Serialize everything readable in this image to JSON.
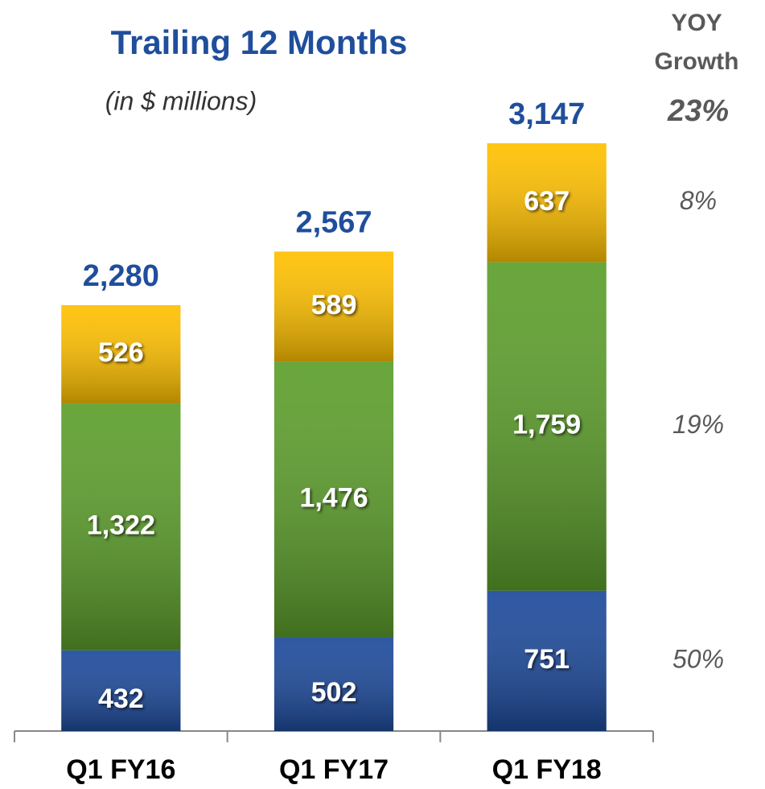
{
  "chart_data": {
    "type": "bar",
    "stacked": true,
    "title": "Trailing 12 Months",
    "subtitle": "(in $ millions)",
    "growth_heading": [
      "YOY",
      "Growth"
    ],
    "growth_total": "23%",
    "categories": [
      "Q1 FY16",
      "Q1 FY17",
      "Q1 FY18"
    ],
    "series": [
      {
        "color": "#1d4a9b",
        "values": [
          432,
          502,
          751
        ],
        "value_labels": [
          "432",
          "502",
          "751"
        ],
        "growth": "50%"
      },
      {
        "color": "#5c9e2b",
        "values": [
          1322,
          1476,
          1759
        ],
        "value_labels": [
          "1,322",
          "1,476",
          "1,759"
        ],
        "growth": "19%"
      },
      {
        "color": "#ffc000",
        "values": [
          526,
          589,
          637
        ],
        "value_labels": [
          "526",
          "589",
          "637"
        ],
        "growth": "8%"
      }
    ],
    "totals": [
      2280,
      2567,
      3147
    ],
    "total_labels": [
      "2,280",
      "2,567",
      "3,147"
    ],
    "ylim": [
      0,
      3500
    ]
  }
}
